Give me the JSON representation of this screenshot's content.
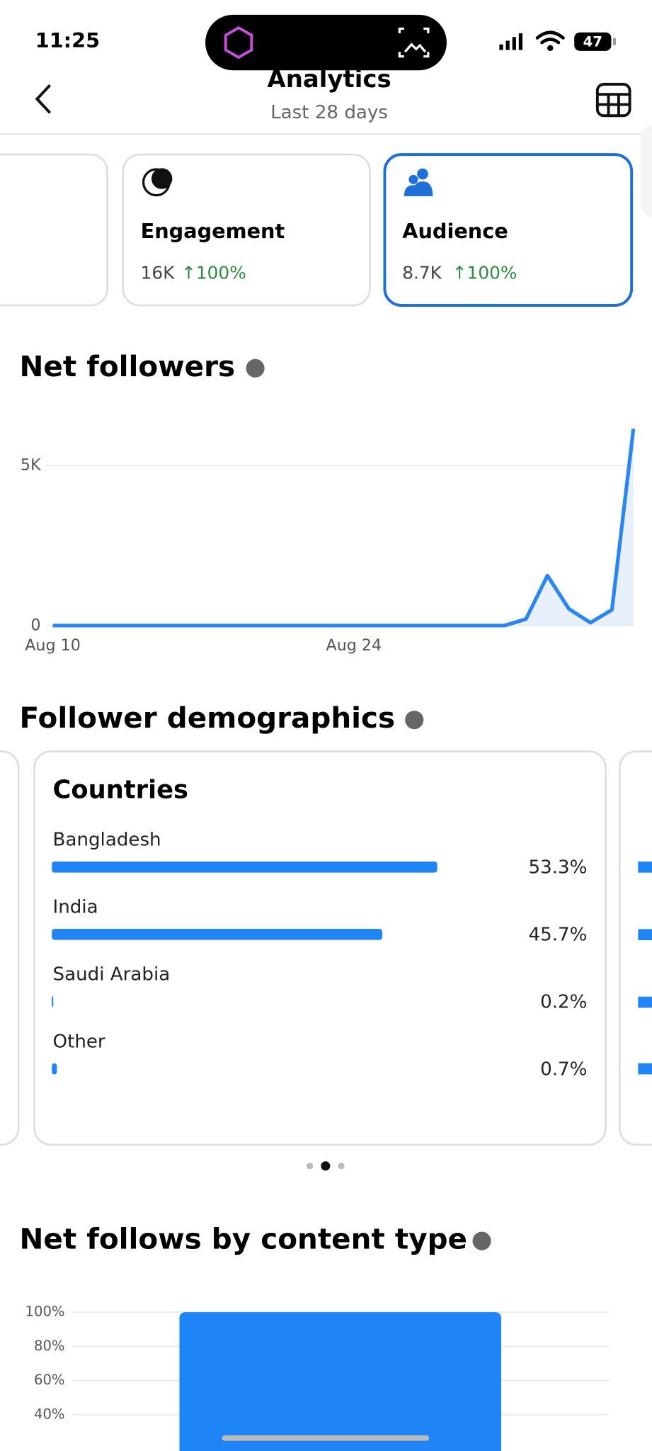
{
  "status_bar": {
    "time": "11:25",
    "battery": "47"
  },
  "header": {
    "title": "Analytics",
    "subtitle": "Last 28 days"
  },
  "metric_cards": [
    {
      "title": "Engagement",
      "value": "16K",
      "change": "↑100%"
    },
    {
      "title": "Audience",
      "value": "8.7K",
      "change": "↑100%"
    }
  ],
  "sections": {
    "follower_demographics": "Follower demographics"
  },
  "chart_data": [
    {
      "type": "line",
      "title": "Net followers",
      "categories": [
        "Aug 10",
        null,
        null,
        null,
        null,
        null,
        null,
        null,
        null,
        null,
        null,
        null,
        null,
        null,
        "Aug 24",
        null,
        null,
        null,
        null,
        null,
        null,
        null,
        null,
        null,
        null,
        null,
        null,
        null
      ],
      "values": [
        0,
        0,
        0,
        0,
        0,
        0,
        0,
        0,
        0,
        0,
        0,
        0,
        0,
        0,
        0,
        0,
        0,
        0,
        0,
        0,
        0,
        0,
        200,
        1560,
        520,
        90,
        490,
        6150
      ],
      "color": "#2a86f0",
      "area": true,
      "ylim": [
        0,
        6000
      ],
      "yticks": [
        0,
        {
          "value": 5000,
          "label": "5K"
        }
      ],
      "grid": true
    },
    {
      "type": "hbar",
      "title": "Countries",
      "categories": [
        "Bangladesh",
        "India",
        "Saudi Arabia",
        "Other"
      ],
      "values": [
        53.3,
        45.7,
        0.2,
        0.7
      ],
      "value_labels": [
        "53.3%",
        "45.7%",
        "0.2%",
        "0.7%"
      ],
      "color": "#1f84f5",
      "xlim": [
        0,
        100
      ]
    },
    {
      "type": "bar",
      "title": "Net follows by content type",
      "categories": [
        null
      ],
      "values": [
        100
      ],
      "color": "#1f84f5",
      "ylim": [
        0,
        100
      ],
      "yticks": [
        {
          "value": 40,
          "label": "40%"
        },
        {
          "value": 60,
          "label": "60%"
        },
        {
          "value": 80,
          "label": "80%"
        },
        {
          "value": 100,
          "label": "100%"
        }
      ],
      "grid": true
    }
  ]
}
